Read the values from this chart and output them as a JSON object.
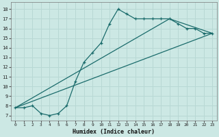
{
  "xlabel": "Humidex (Indice chaleur)",
  "bg_color": "#cce8e4",
  "grid_color": "#aed0cc",
  "line_color": "#1a6b6b",
  "xlim": [
    -0.5,
    23.5
  ],
  "ylim": [
    6.5,
    18.7
  ],
  "xticks": [
    0,
    1,
    2,
    3,
    4,
    5,
    6,
    7,
    8,
    9,
    10,
    11,
    12,
    13,
    14,
    15,
    16,
    17,
    18,
    19,
    20,
    21,
    22,
    23
  ],
  "yticks": [
    7,
    8,
    9,
    10,
    11,
    12,
    13,
    14,
    15,
    16,
    17,
    18
  ],
  "line1_x": [
    0,
    1,
    2,
    3,
    4,
    5,
    6,
    7,
    8,
    9,
    10,
    11,
    12,
    13,
    14,
    15,
    16,
    17,
    18,
    19,
    20,
    21,
    22,
    23
  ],
  "line1_y": [
    7.8,
    7.8,
    8.0,
    7.2,
    7.0,
    7.2,
    8.0,
    10.5,
    12.5,
    13.5,
    14.5,
    16.5,
    18.0,
    17.5,
    17.0,
    17.0,
    17.0,
    17.0,
    17.0,
    16.5,
    16.0,
    16.0,
    15.5,
    15.5
  ],
  "line2_x": [
    0,
    23
  ],
  "line2_y": [
    7.8,
    15.5
  ],
  "line3_x": [
    0,
    18,
    23
  ],
  "line3_y": [
    7.8,
    17.0,
    15.5
  ]
}
